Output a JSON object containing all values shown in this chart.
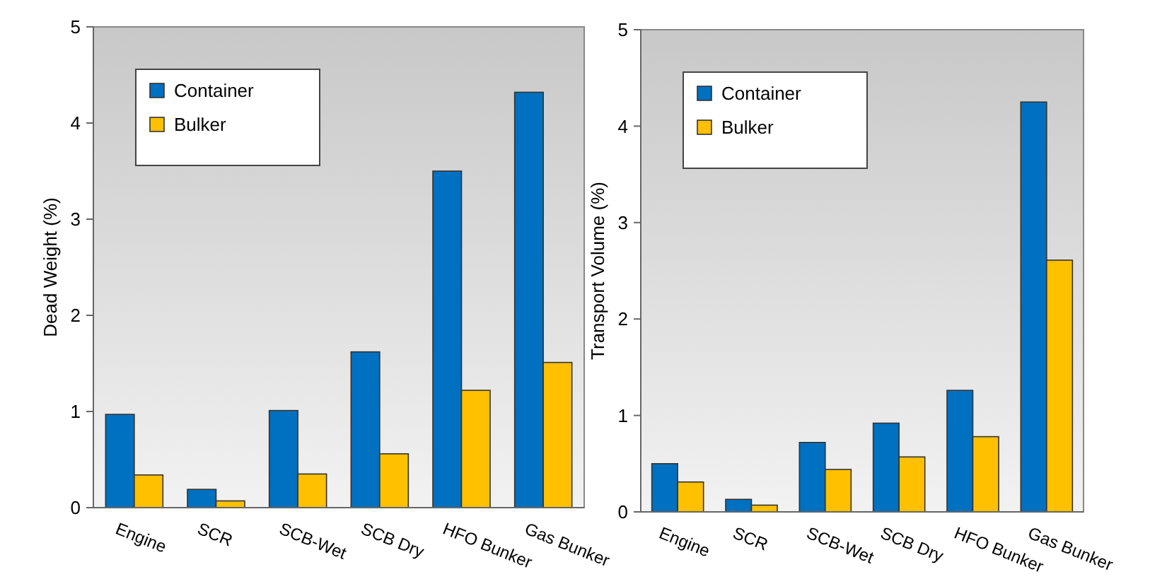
{
  "chart_data": [
    {
      "type": "bar",
      "ylabel": "Dead Weight (%)",
      "categories": [
        "Engine",
        "SCR",
        "SCB-Wet",
        "SCB Dry",
        "HFO Bunker",
        "Gas Bunker"
      ],
      "ylim": [
        0,
        5
      ],
      "yticks": [
        0,
        1,
        2,
        3,
        4,
        5
      ],
      "legend": "top left",
      "series": [
        {
          "name": "Container",
          "color": "#0070c0",
          "values": [
            0.97,
            0.19,
            1.01,
            1.62,
            3.5,
            4.32
          ]
        },
        {
          "name": "Bulker",
          "color": "#ffc000",
          "values": [
            0.34,
            0.07,
            0.35,
            0.56,
            1.22,
            1.51
          ]
        }
      ]
    },
    {
      "type": "bar",
      "ylabel": "Transport Volume (%)",
      "categories": [
        "Engine",
        "SCR",
        "SCB-Wet",
        "SCB Dry",
        "HFO Bunker",
        "Gas Bunker"
      ],
      "ylim": [
        0,
        5
      ],
      "yticks": [
        0,
        1,
        2,
        3,
        4,
        5
      ],
      "legend": "top left",
      "series": [
        {
          "name": "Container",
          "color": "#0070c0",
          "values": [
            0.5,
            0.13,
            0.72,
            0.92,
            1.26,
            4.25
          ]
        },
        {
          "name": "Bulker",
          "color": "#ffc000",
          "values": [
            0.31,
            0.07,
            0.44,
            0.57,
            0.78,
            2.61
          ]
        }
      ]
    }
  ]
}
